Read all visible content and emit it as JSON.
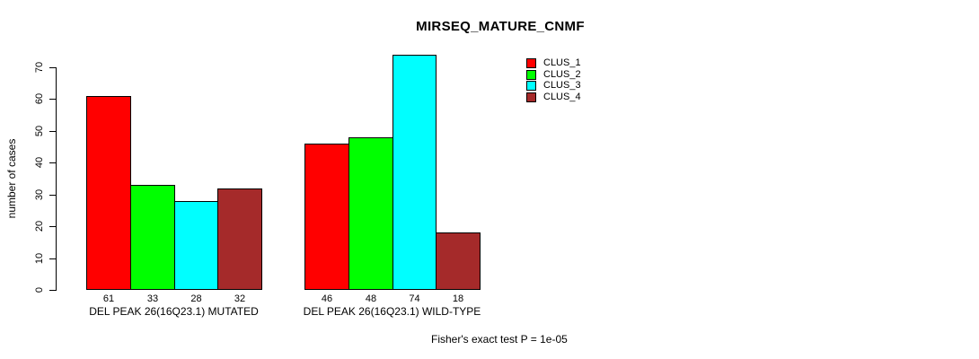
{
  "figure": {
    "background": "#FFFFFF",
    "text_color": "#000000"
  },
  "chart_data": {
    "type": "bar",
    "title": "MIRSEQ_MATURE_CNMF",
    "ylabel": "number of cases",
    "xlabel": "",
    "ylim": [
      0,
      74
    ],
    "yticks": [
      0,
      10,
      20,
      30,
      40,
      50,
      60,
      70
    ],
    "grid": false,
    "legend_position": "top-right-outside",
    "bar_border_color": "#000000",
    "categories": [
      "DEL PEAK 26(16Q23.1) MUTATED",
      "DEL PEAK 26(16Q23.1) WILD-TYPE"
    ],
    "series": [
      {
        "name": "CLUS_1",
        "color": "#FF0000",
        "values": [
          61,
          46
        ]
      },
      {
        "name": "CLUS_2",
        "color": "#00FF00",
        "values": [
          33,
          48
        ]
      },
      {
        "name": "CLUS_3",
        "color": "#00FFFF",
        "values": [
          28,
          74
        ]
      },
      {
        "name": "CLUS_4",
        "color": "#A52A2A",
        "values": [
          32,
          18
        ]
      }
    ],
    "bar_value_labels": true,
    "annotation": "Fisher's exact test P = 1e-05"
  },
  "legend": {
    "items": [
      {
        "label": "CLUS_1",
        "color": "#FF0000"
      },
      {
        "label": "CLUS_2",
        "color": "#00FF00"
      },
      {
        "label": "CLUS_3",
        "color": "#00FFFF"
      },
      {
        "label": "CLUS_4",
        "color": "#A52A2A"
      }
    ]
  }
}
